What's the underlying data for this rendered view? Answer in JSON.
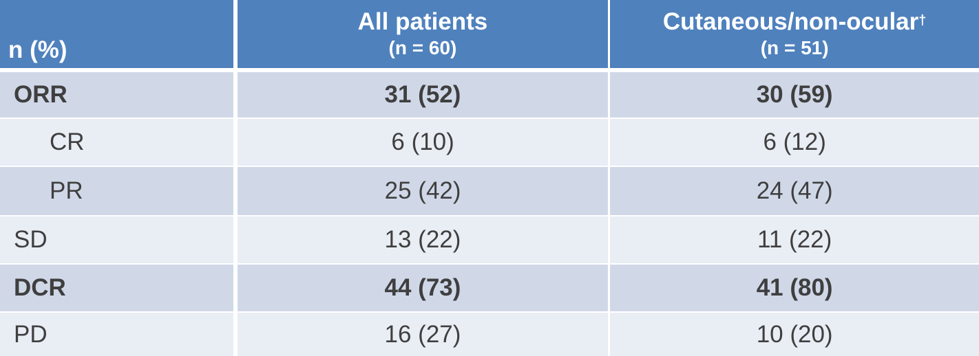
{
  "header": {
    "col0": "n (%)",
    "col1_title": "All patients",
    "col1_sub": "(n = 60)",
    "col2_title": "Cutaneous/non-ocular",
    "col2_sup": "†",
    "col2_sub": "(n = 51)"
  },
  "rows": [
    {
      "label": "ORR",
      "all": "31 (52)",
      "cut": "30 (59)"
    },
    {
      "label": "CR",
      "all": "6 (10)",
      "cut": "6 (12)"
    },
    {
      "label": "PR",
      "all": "25 (42)",
      "cut": "24 (47)"
    },
    {
      "label": "SD",
      "all": "13 (22)",
      "cut": "11 (22)"
    },
    {
      "label": "DCR",
      "all": "44 (73)",
      "cut": "41 (80)"
    },
    {
      "label": "PD",
      "all": "16 (27)",
      "cut": "10 (20)"
    }
  ],
  "colors": {
    "header_bg": "#4f81bd",
    "row_dark": "#d0d8e8",
    "row_light": "#e9edf4",
    "text": "#3f3f3f"
  }
}
